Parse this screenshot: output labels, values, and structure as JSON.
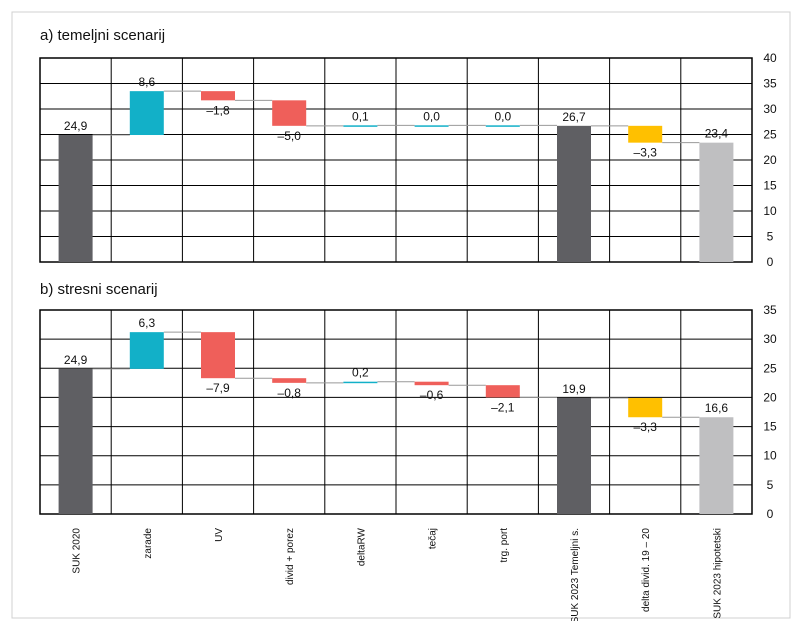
{
  "chart_data": [
    {
      "type": "waterfall",
      "title": "a) temeljni scenarij",
      "values": [
        24.9,
        8.6,
        -1.8,
        -5.0,
        0.1,
        0.0,
        0.0,
        26.7,
        -3.3,
        23.4
      ],
      "value_labels": [
        "24,9",
        "8,6",
        "–1,8",
        "–5,0",
        "0,1",
        "0,0",
        "0,0",
        "26,7",
        "–3,3",
        "23,4"
      ],
      "measures": [
        "absolute",
        "relative",
        "relative",
        "relative",
        "relative",
        "relative",
        "relative",
        "absolute",
        "relative",
        "absolute"
      ],
      "colors": [
        "#5f5f63",
        "#12b0c8",
        "#ef5f5a",
        "#ef5f5a",
        "#12b0c8",
        "#12b0c8",
        "#12b0c8",
        "#5f5f63",
        "#ffc000",
        "#bfbfc1"
      ],
      "ylim": [
        0,
        40
      ],
      "yticks": [
        0,
        5,
        10,
        15,
        20,
        25,
        30,
        35,
        40
      ],
      "grid": true
    },
    {
      "type": "waterfall",
      "title": "b) stresni scenarij",
      "categories": [
        "SUK 2020",
        "zarade",
        "UV",
        "divid + porez",
        "deltaRW",
        "tečaj",
        "trg. port",
        "SUK 2023 Temeljni s.",
        "delta divid. 19 – 20",
        "SUK 2023 hipotetski"
      ],
      "values": [
        24.9,
        6.3,
        -7.9,
        -0.8,
        0.2,
        -0.6,
        -2.1,
        19.9,
        -3.3,
        16.6
      ],
      "value_labels": [
        "24,9",
        "6,3",
        "–7,9",
        "–0,8",
        "0,2",
        "–0,6",
        "–2,1",
        "19,9",
        "–3,3",
        "16,6"
      ],
      "measures": [
        "absolute",
        "relative",
        "relative",
        "relative",
        "relative",
        "relative",
        "relative",
        "absolute",
        "relative",
        "absolute"
      ],
      "colors": [
        "#5f5f63",
        "#12b0c8",
        "#ef5f5a",
        "#ef5f5a",
        "#12b0c8",
        "#ef5f5a",
        "#ef5f5a",
        "#5f5f63",
        "#ffc000",
        "#bfbfc1"
      ],
      "ylim": [
        0,
        35
      ],
      "yticks": [
        0,
        5,
        10,
        15,
        20,
        25,
        30,
        35
      ],
      "grid": true
    }
  ]
}
